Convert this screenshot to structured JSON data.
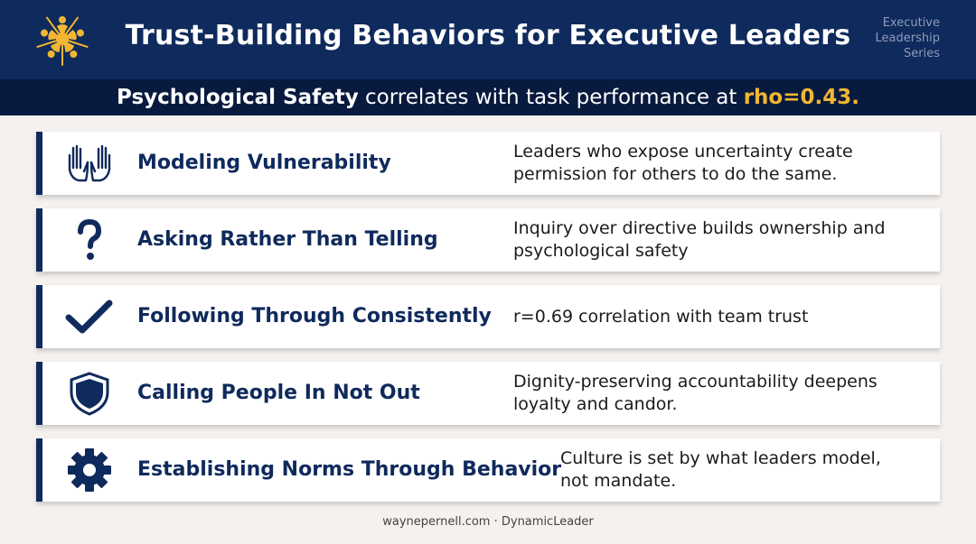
{
  "header": {
    "title": "Trust-Building Behaviors for Executive Leaders",
    "series": [
      "Executive",
      "Leadership",
      "Series"
    ],
    "logo_icon": "sunburst-people-logo-icon"
  },
  "stat": {
    "bold": "Psychological Safety",
    "middle": "correlates with task performance at",
    "highlight": "rho=0.43."
  },
  "behaviors": [
    {
      "icon": "raised-hands-icon",
      "name": "Modeling Vulnerability",
      "desc": "Leaders who expose uncertainty create permission for others to do the same."
    },
    {
      "icon": "question-mark-icon",
      "name": "Asking Rather Than Telling",
      "desc": "Inquiry over directive builds ownership and psychological safety"
    },
    {
      "icon": "checkmark-icon",
      "name": "Following Through Consistently",
      "desc": "r=0.69 correlation with team trust"
    },
    {
      "icon": "shield-icon",
      "name": "Calling People In Not Out",
      "desc": "Dignity-preserving accountability deepens loyalty and candor."
    },
    {
      "icon": "gear-icon",
      "name": "Establishing Norms Through Behavior",
      "desc": "Culture is set by what leaders model, not mandate."
    }
  ],
  "footer": "waynepernell.com · DynamicLeader",
  "colors": {
    "navy": "#0f2a5c",
    "dark_navy": "#081a3e",
    "accent": "#f2b632",
    "background": "#f4f1ef"
  }
}
